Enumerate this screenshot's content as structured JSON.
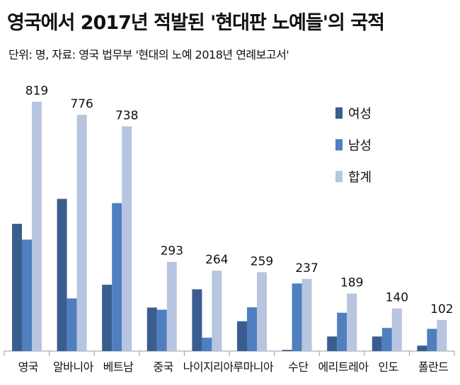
{
  "chart_data": {
    "type": "bar",
    "title": "영국에서 2017년 적발된 '현대판 노예들'의 국적",
    "subtitle": "단위: 명, 자료: 영국 법무부 '현대의 노예 2018년 연례보고서'",
    "categories": [
      "영국",
      "알바니아",
      "베트남",
      "중국",
      "나이지리아",
      "루마니아",
      "수단",
      "에리트레아",
      "인도",
      "폴란드"
    ],
    "series": [
      {
        "name": "여성",
        "color": "#3a5d8f",
        "values": [
          418,
          500,
          218,
          143,
          203,
          98,
          4,
          48,
          48,
          18
        ]
      },
      {
        "name": "남성",
        "color": "#4f7fbf",
        "values": [
          366,
          173,
          486,
          136,
          44,
          144,
          222,
          126,
          76,
          73
        ]
      },
      {
        "name": "합계",
        "color": "#b8c5e0",
        "values": [
          819,
          776,
          738,
          293,
          264,
          259,
          237,
          189,
          140,
          102
        ]
      }
    ],
    "total_labels": [
      "819",
      "776",
      "738",
      "293",
      "264",
      "259",
      "237",
      "189",
      "140",
      "102"
    ],
    "ylim": [
      0,
      900
    ],
    "legend": "right"
  }
}
